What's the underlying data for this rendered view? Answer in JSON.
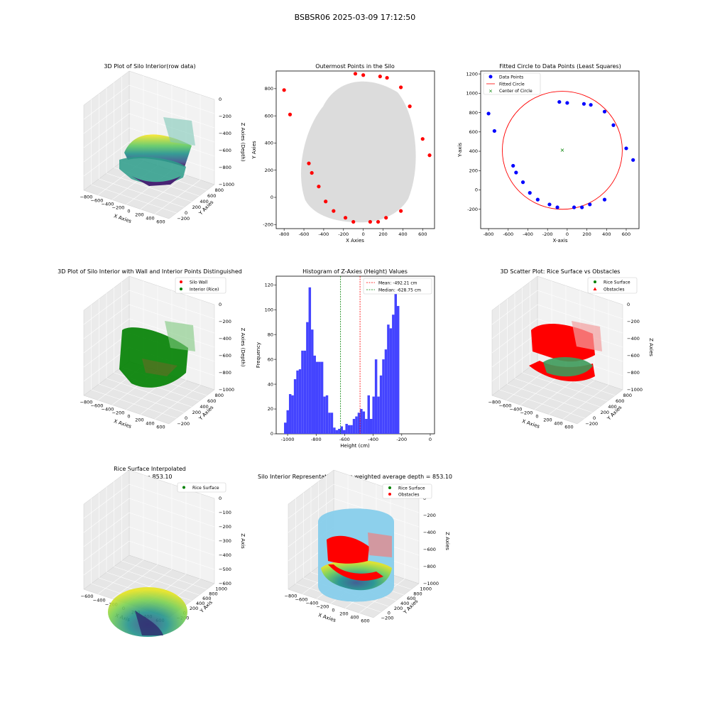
{
  "figure_title": "BSBSR06 2025-03-09 17:12:50",
  "colors": {
    "red": "#ff0000",
    "blue": "#0000ff",
    "green": "#008000",
    "hist_bar": "#4444ff",
    "gray_points": "#d3d3d3",
    "silo_fill": "#87ceeb"
  },
  "chart_data": [
    {
      "type": "scatter3d",
      "title": "3D Plot of Silo Interior(row data)",
      "xlabel": "X Axies",
      "ylabel": "Y Axies",
      "zlabel": "Z Axies (Depth)",
      "x_ticks": [
        "−800",
        "−600",
        "−400",
        "−200",
        "0",
        "200",
        "400",
        "600"
      ],
      "y_ticks": [
        "−200",
        "0",
        "200",
        "400",
        "600",
        "800"
      ],
      "z_ticks": [
        "0",
        "−200",
        "−400",
        "−600",
        "−800",
        "−1000"
      ],
      "colormap": "viridis"
    },
    {
      "type": "scatter",
      "title": "Outermost Points in the Silo",
      "xlabel": "X Axies",
      "ylabel": "Y Axies",
      "xlim": [
        -880,
        720
      ],
      "ylim": [
        -230,
        930
      ],
      "x_ticks": [
        -800,
        -600,
        -400,
        -200,
        0,
        200,
        400,
        600
      ],
      "y_ticks": [
        -200,
        0,
        200,
        400,
        600,
        800
      ],
      "outer_points": [
        [
          -800,
          790
        ],
        [
          -740,
          610
        ],
        [
          -550,
          250
        ],
        [
          -520,
          180
        ],
        [
          -450,
          80
        ],
        [
          -380,
          -30
        ],
        [
          -300,
          -100
        ],
        [
          -180,
          -150
        ],
        [
          -100,
          -180
        ],
        [
          70,
          -180
        ],
        [
          150,
          -180
        ],
        [
          230,
          -150
        ],
        [
          380,
          -100
        ],
        [
          380,
          810
        ],
        [
          470,
          670
        ],
        [
          600,
          430
        ],
        [
          670,
          310
        ],
        [
          240,
          880
        ],
        [
          170,
          890
        ],
        [
          -80,
          910
        ],
        [
          0,
          900
        ]
      ]
    },
    {
      "type": "scatter",
      "title": "Fitted Circle to Data Points (Least Squares)",
      "xlabel": "X-axis",
      "ylabel": "Y-axis",
      "xlim": [
        -880,
        730
      ],
      "ylim": [
        -400,
        1230
      ],
      "x_ticks": [
        -800,
        -600,
        -400,
        -200,
        0,
        200,
        400,
        600
      ],
      "y_ticks": [
        -200,
        0,
        200,
        400,
        600,
        800,
        1000,
        1200
      ],
      "legend": [
        "Data Points",
        "Fitted Circle",
        "Center of Circle"
      ],
      "data_points": [
        [
          -800,
          790
        ],
        [
          -740,
          610
        ],
        [
          -550,
          250
        ],
        [
          -520,
          180
        ],
        [
          -450,
          80
        ],
        [
          -380,
          -30
        ],
        [
          -300,
          -100
        ],
        [
          -180,
          -150
        ],
        [
          -100,
          -180
        ],
        [
          70,
          -180
        ],
        [
          150,
          -180
        ],
        [
          230,
          -150
        ],
        [
          380,
          -100
        ],
        [
          380,
          810
        ],
        [
          470,
          670
        ],
        [
          600,
          430
        ],
        [
          670,
          310
        ],
        [
          240,
          880
        ],
        [
          170,
          890
        ],
        [
          -80,
          910
        ],
        [
          0,
          900
        ]
      ],
      "circle_center": [
        -50,
        410
      ],
      "circle_radius": 610
    },
    {
      "type": "scatter3d",
      "title": "3D Plot of Silo Interior with Wall and Interior Points Distinguished",
      "xlabel": "X Axies",
      "ylabel": "Y Axies",
      "zlabel": "Z Axies (Depth)",
      "legend": [
        "Silo Wall",
        "Interior (Rice)"
      ],
      "x_ticks": [
        "−800",
        "−600",
        "−400",
        "−200",
        "0",
        "200",
        "400",
        "600"
      ],
      "y_ticks": [
        "−200",
        "0",
        "200",
        "400",
        "600",
        "800"
      ],
      "z_ticks": [
        "0",
        "−200",
        "−400",
        "−600",
        "−800",
        "−1000"
      ]
    },
    {
      "type": "bar",
      "title": "Histogram of Z-Axies (Height) Values",
      "xlabel": "Height (cm)",
      "ylabel": "Frequency",
      "xlim": [
        -1080,
        30
      ],
      "ylim": [
        0,
        127
      ],
      "x_ticks": [
        -1000,
        -800,
        -600,
        -400,
        -200,
        0
      ],
      "y_ticks": [
        0,
        20,
        40,
        60,
        80,
        100,
        120
      ],
      "bin_start": -1025,
      "bin_width": 17.2,
      "counts": [
        9,
        19,
        32,
        31,
        44,
        51,
        52,
        67,
        67,
        90,
        118,
        84,
        63,
        58,
        58,
        58,
        30,
        31,
        17,
        17,
        5,
        3,
        4,
        6,
        3,
        8,
        7,
        7,
        12,
        14,
        17,
        20,
        18,
        12,
        31,
        12,
        30,
        60,
        30,
        47,
        60,
        68,
        88,
        85,
        96,
        118,
        103
      ],
      "mean_label": "Mean: -492.21 cm",
      "mean": -492.21,
      "median_label": "Median: -628.75 cm",
      "median": -628.75
    },
    {
      "type": "scatter3d",
      "title": "3D Scatter Plot: Rice Surface vs Obstacles",
      "xlabel": "X Axies",
      "ylabel": "Y Axies",
      "zlabel": "Z Axies",
      "legend": [
        "Rice Surface",
        "Obstacles"
      ],
      "x_ticks": [
        "−800",
        "−600",
        "−400",
        "−200",
        "0",
        "200",
        "400",
        "600"
      ],
      "y_ticks": [
        "−200",
        "0",
        "200",
        "400",
        "600",
        "800"
      ],
      "z_ticks": [
        "0",
        "−200",
        "−400",
        "−600",
        "−800",
        "−1000"
      ]
    },
    {
      "type": "surface3d",
      "title": "Rice Surface Interpolated",
      "subtitle": "depth = 853.10",
      "xlabel": "X Axis",
      "ylabel": "Y Axis",
      "zlabel": "Z Axis",
      "legend": [
        "Rice Surface"
      ],
      "x_ticks": [
        "−600",
        "−400",
        "−200",
        "0",
        "200",
        "400",
        "600"
      ],
      "y_ticks": [
        "−200",
        "0",
        "200",
        "400",
        "600",
        "800",
        "1000"
      ],
      "z_ticks": [
        "0",
        "−100",
        "−200",
        "−300",
        "−400",
        "−500",
        "−600"
      ]
    },
    {
      "type": "surface3d",
      "title": "Silo Interior Representation using weighted average depth = 853.10",
      "xlabel": "X Axies",
      "ylabel": "Y Axies",
      "zlabel": "Z Axies",
      "legend": [
        "Rice Surface",
        "Obstacles"
      ],
      "x_ticks": [
        "−800",
        "−600",
        "−400",
        "−200",
        "0",
        "200",
        "400",
        "600"
      ],
      "y_ticks": [
        "−200",
        "0",
        "200",
        "400",
        "600",
        "800",
        "1000"
      ],
      "z_ticks": [
        "0",
        "−200",
        "−400",
        "−600",
        "−800",
        "−1000"
      ]
    }
  ]
}
